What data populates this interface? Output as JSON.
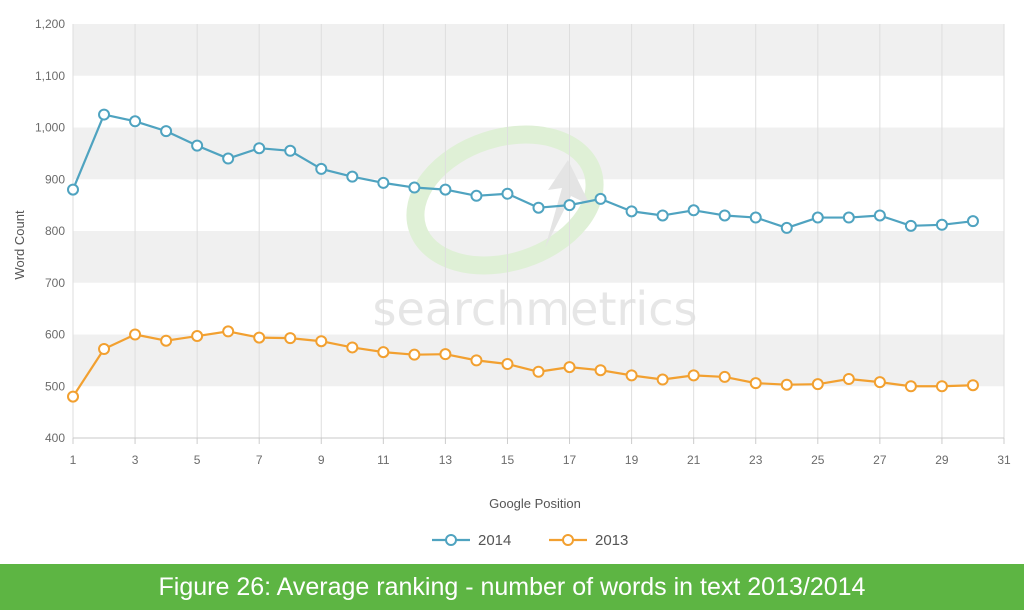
{
  "caption": "Figure 26: Average ranking - number of words in text 2013/2014",
  "watermark": "searchmetrics",
  "colors": {
    "series_2014": "#4fa3c0",
    "series_2013": "#f2a030",
    "band": "#f0f0f0",
    "caption_bg": "#5db543"
  },
  "chart_data": {
    "type": "line",
    "title": "",
    "xlabel": "Google Position",
    "ylabel": "Word Count",
    "xlim": [
      1,
      31
    ],
    "ylim": [
      400,
      1200
    ],
    "x_ticks": [
      1,
      3,
      5,
      7,
      9,
      11,
      13,
      15,
      17,
      19,
      21,
      23,
      25,
      27,
      29,
      31
    ],
    "y_ticks": [
      400,
      500,
      600,
      700,
      800,
      900,
      1000,
      1100,
      1200
    ],
    "y_tick_labels": [
      "400",
      "500",
      "600",
      "700",
      "800",
      "900",
      "1,000",
      "1,100",
      "1,200"
    ],
    "grid": true,
    "legend_position": "bottom-center",
    "x": [
      1,
      2,
      3,
      4,
      5,
      6,
      7,
      8,
      9,
      10,
      11,
      12,
      13,
      14,
      15,
      16,
      17,
      18,
      19,
      20,
      21,
      22,
      23,
      24,
      25,
      26,
      27,
      28,
      29,
      30
    ],
    "series": [
      {
        "name": "2014",
        "values": [
          880,
          1025,
          1012,
          993,
          965,
          940,
          960,
          955,
          920,
          905,
          893,
          884,
          880,
          868,
          872,
          845,
          850,
          862,
          838,
          830,
          840,
          830,
          826,
          806,
          826,
          826,
          830,
          810,
          812,
          819
        ]
      },
      {
        "name": "2013",
        "values": [
          480,
          572,
          600,
          588,
          597,
          606,
          594,
          593,
          587,
          575,
          566,
          561,
          562,
          550,
          543,
          528,
          537,
          531,
          521,
          513,
          521,
          518,
          506,
          503,
          504,
          514,
          508,
          500,
          500,
          502
        ]
      }
    ]
  }
}
